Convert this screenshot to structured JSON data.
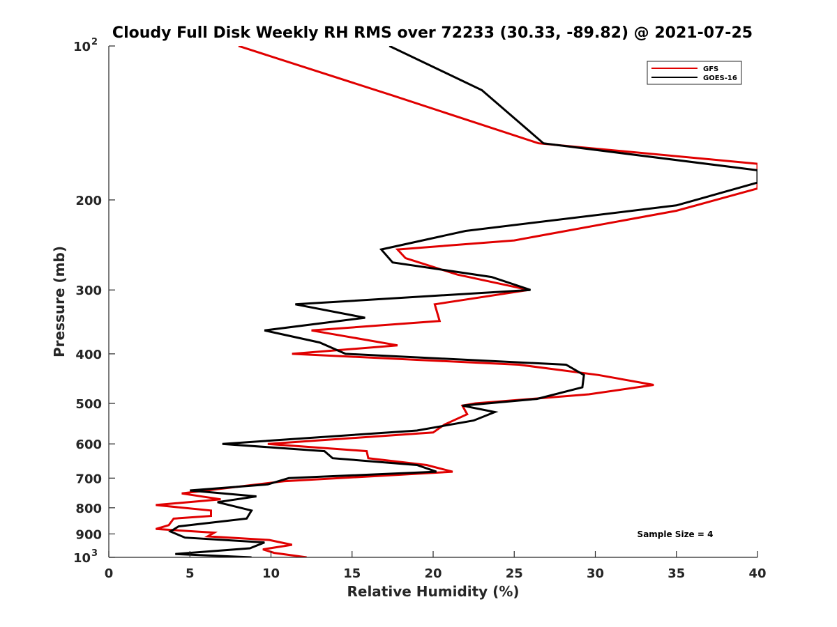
{
  "chart_data": {
    "type": "line",
    "title": "Cloudy Full Disk Weekly RH RMS over 72233 (30.33, -89.82) @ 2021-07-25",
    "xlabel": "Relative Humidity (%)",
    "ylabel": "Pressure (mb)",
    "xlim": [
      0,
      40
    ],
    "ylim": [
      100,
      1000
    ],
    "yscale": "log",
    "yreversed": true,
    "xticks": [
      "0",
      "5",
      "10",
      "15",
      "20",
      "25",
      "30",
      "35",
      "40"
    ],
    "yticks": [
      {
        "value": 100,
        "base": "10",
        "exp": "2"
      },
      {
        "value": 200,
        "label": "200"
      },
      {
        "value": 300,
        "label": "300"
      },
      {
        "value": 400,
        "label": "400"
      },
      {
        "value": 500,
        "label": "500"
      },
      {
        "value": 600,
        "label": "600"
      },
      {
        "value": 700,
        "label": "700"
      },
      {
        "value": 800,
        "label": "800"
      },
      {
        "value": 900,
        "label": "900"
      },
      {
        "value": 1000,
        "base": "10",
        "exp": "3"
      }
    ],
    "legend_position": "top-right",
    "annotation": "Sample Size = 4",
    "series": [
      {
        "name": "GFS",
        "color": "#e00000",
        "x": [
          8.0,
          17.5,
          26.5,
          40.0,
          40.0,
          35.0,
          25.0,
          17.8,
          18.3,
          21.5,
          25.9,
          20.1,
          20.4,
          12.5,
          17.8,
          11.3,
          25.3,
          30.2,
          33.6,
          29.6,
          22.6,
          21.8,
          22.1,
          20.7,
          20.0,
          9.8,
          15.9,
          16.0,
          19.6,
          21.2,
          10.8,
          4.5,
          6.9,
          2.9,
          6.3,
          6.3,
          4.0,
          3.7,
          2.9,
          6.5,
          6.1,
          9.9,
          11.3,
          9.5,
          10.2,
          12.2
        ],
        "y": [
          100,
          125,
          155,
          170,
          190,
          210,
          240,
          250,
          260,
          280,
          300,
          320,
          345,
          360,
          385,
          400,
          420,
          440,
          460,
          480,
          500,
          505,
          525,
          550,
          570,
          600,
          620,
          640,
          660,
          680,
          710,
          750,
          770,
          790,
          810,
          830,
          840,
          865,
          880,
          895,
          910,
          925,
          945,
          965,
          980,
          1000
        ]
      },
      {
        "name": "GOES-16",
        "color": "#000000",
        "x": [
          17.3,
          23.0,
          26.8,
          40.0,
          40.0,
          35.0,
          22.0,
          16.8,
          17.5,
          23.6,
          26.0,
          11.5,
          15.8,
          9.6,
          13.0,
          14.6,
          28.2,
          29.3,
          29.2,
          26.4,
          21.8,
          23.8,
          22.5,
          19.0,
          7.0,
          13.3,
          13.8,
          19.0,
          20.2,
          11.1,
          9.8,
          5.0,
          9.1,
          6.7,
          8.8,
          8.5,
          4.3,
          3.8,
          4.7,
          9.6,
          8.7,
          4.1,
          8.8
        ],
        "y": [
          100,
          122,
          155,
          175,
          185,
          205,
          230,
          250,
          265,
          283,
          300,
          320,
          340,
          360,
          380,
          400,
          420,
          440,
          465,
          490,
          505,
          520,
          540,
          565,
          600,
          620,
          640,
          660,
          680,
          700,
          720,
          740,
          760,
          780,
          810,
          840,
          870,
          890,
          915,
          935,
          960,
          985,
          1000
        ]
      }
    ]
  }
}
